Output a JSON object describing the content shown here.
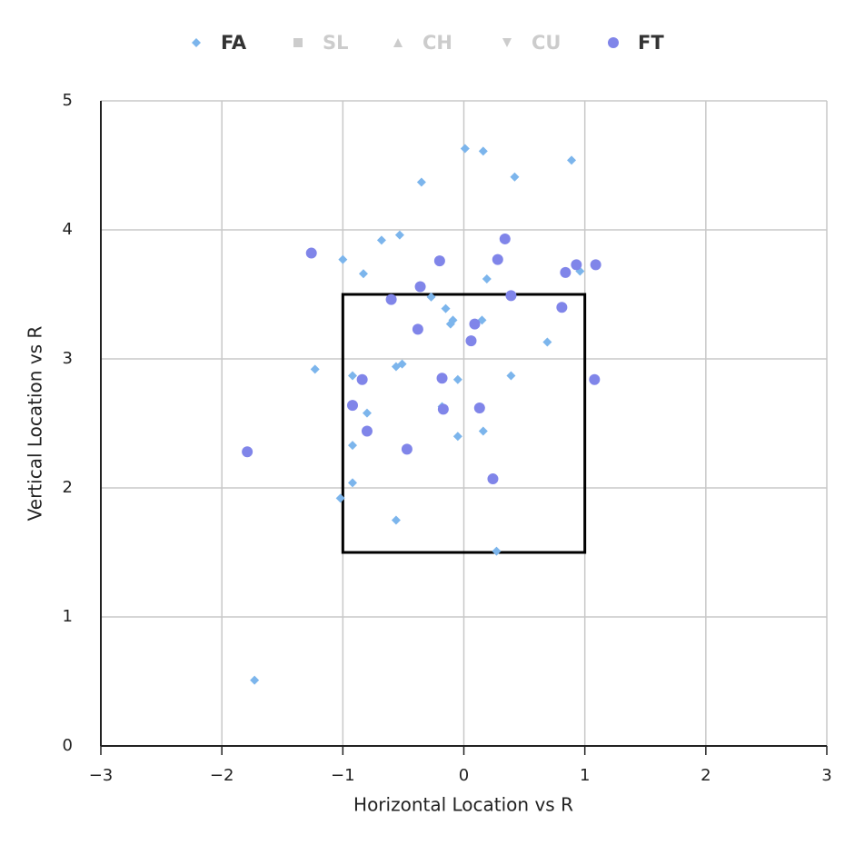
{
  "chart_data": {
    "type": "scatter",
    "x_label": "Horizontal Location vs R",
    "y_label": "Vertical Location vs R",
    "xlim": [
      -3,
      3
    ],
    "ylim": [
      0,
      5
    ],
    "xticks": [
      {
        "value": -3,
        "label": "−3"
      },
      {
        "value": -2,
        "label": "−2"
      },
      {
        "value": -1,
        "label": "−1"
      },
      0,
      1,
      2,
      3
    ],
    "yticks": [
      0,
      1,
      2,
      3,
      4,
      5
    ],
    "grid": true,
    "legend": "top",
    "strike_zone": {
      "x": [
        -1,
        1
      ],
      "y": [
        1.5,
        3.5
      ]
    },
    "series": [
      {
        "name": "FA",
        "color": "#7cb5ec",
        "marker": "diamond",
        "visible": true,
        "x": [
          0.01,
          0.16,
          0.89,
          0.42,
          -0.35,
          -0.53,
          -0.68,
          -1.0,
          -0.83,
          0.19,
          0.96,
          -0.27,
          -0.15,
          -0.09,
          -0.11,
          0.15,
          0.69,
          -1.23,
          -0.92,
          -0.56,
          -0.51,
          -0.05,
          0.39,
          -0.18,
          -0.8,
          0.16,
          -0.05,
          -0.92,
          -0.92,
          -1.02,
          -0.56,
          0.27,
          -1.73
        ],
        "y": [
          4.63,
          4.61,
          4.54,
          4.41,
          4.37,
          3.96,
          3.92,
          3.77,
          3.66,
          3.62,
          3.68,
          3.48,
          3.39,
          3.3,
          3.27,
          3.3,
          3.13,
          2.92,
          2.87,
          2.94,
          2.96,
          2.84,
          2.87,
          2.63,
          2.58,
          2.44,
          2.4,
          2.33,
          2.04,
          1.92,
          1.75,
          1.51,
          0.51
        ]
      },
      {
        "name": "SL",
        "color": "#cccccc",
        "marker": "square",
        "visible": false,
        "x": [],
        "y": []
      },
      {
        "name": "CH",
        "color": "#cccccc",
        "marker": "triangle",
        "visible": false,
        "x": [],
        "y": []
      },
      {
        "name": "CU",
        "color": "#cccccc",
        "marker": "triangle-down",
        "visible": false,
        "x": [],
        "y": []
      },
      {
        "name": "FT",
        "color": "#8085e9",
        "marker": "circle",
        "visible": true,
        "x": [
          -1.26,
          0.34,
          -0.2,
          0.28,
          0.93,
          1.09,
          0.84,
          -0.36,
          -0.6,
          0.39,
          0.81,
          0.09,
          -0.38,
          0.06,
          -0.84,
          -0.18,
          1.08,
          -0.92,
          -0.17,
          0.13,
          -0.8,
          -0.47,
          -1.79,
          0.24
        ],
        "y": [
          3.82,
          3.93,
          3.76,
          3.77,
          3.73,
          3.73,
          3.67,
          3.56,
          3.46,
          3.49,
          3.4,
          3.27,
          3.23,
          3.14,
          2.84,
          2.85,
          2.84,
          2.64,
          2.61,
          2.62,
          2.44,
          2.3,
          2.28,
          2.07
        ]
      }
    ]
  }
}
